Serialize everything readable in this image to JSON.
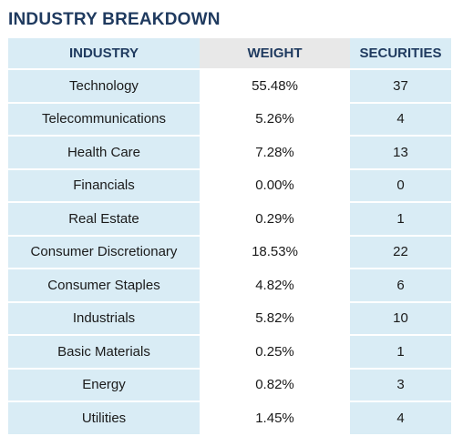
{
  "title": "INDUSTRY BREAKDOWN",
  "headers": [
    "INDUSTRY",
    "WEIGHT",
    "SECURITIES"
  ],
  "rows": [
    {
      "industry": "Technology",
      "weight": "55.48%",
      "securities": "37"
    },
    {
      "industry": "Telecommunications",
      "weight": "5.26%",
      "securities": "4"
    },
    {
      "industry": "Health Care",
      "weight": "7.28%",
      "securities": "13"
    },
    {
      "industry": "Financials",
      "weight": "0.00%",
      "securities": "0"
    },
    {
      "industry": "Real Estate",
      "weight": "0.29%",
      "securities": "1"
    },
    {
      "industry": "Consumer Discretionary",
      "weight": "18.53%",
      "securities": "22"
    },
    {
      "industry": "Consumer Staples",
      "weight": "4.82%",
      "securities": "6"
    },
    {
      "industry": "Industrials",
      "weight": "5.82%",
      "securities": "10"
    },
    {
      "industry": "Basic Materials",
      "weight": "0.25%",
      "securities": "1"
    },
    {
      "industry": "Energy",
      "weight": "0.82%",
      "securities": "3"
    },
    {
      "industry": "Utilities",
      "weight": "1.45%",
      "securities": "4"
    }
  ],
  "colors": {
    "title": "#1f3a5f",
    "band_light": "#d9ecf5",
    "band_mid": "#ffffff",
    "header_mid": "#e8e8e8"
  }
}
